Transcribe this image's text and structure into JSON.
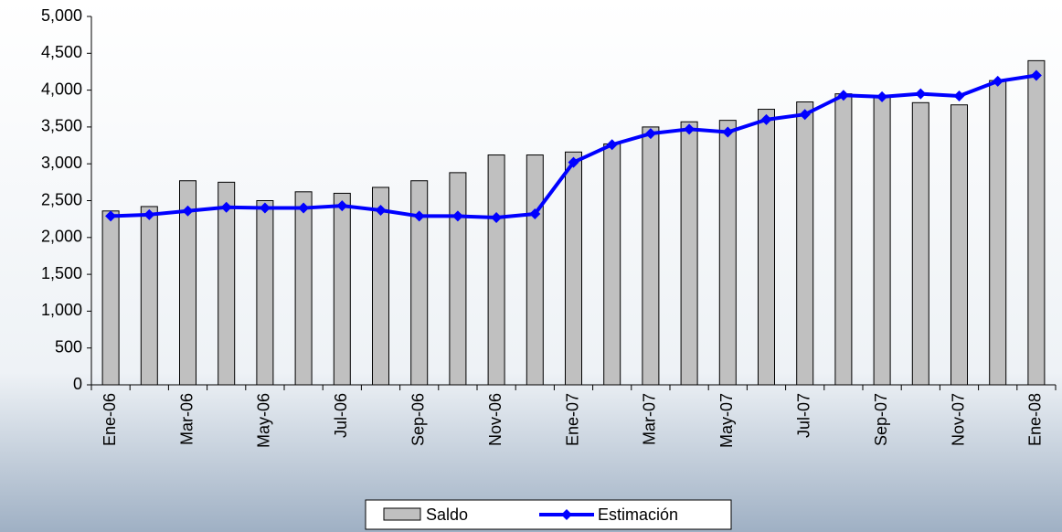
{
  "chart_data": {
    "type": "bar-line",
    "categories": [
      "Ene-06",
      null,
      "Mar-06",
      null,
      "May-06",
      null,
      "Jul-06",
      null,
      "Sep-06",
      null,
      "Nov-06",
      null,
      "Ene-07",
      null,
      "Mar-07",
      null,
      "May-07",
      null,
      "Jul-07",
      null,
      "Sep-07",
      null,
      "Nov-07",
      null,
      "Ene-08"
    ],
    "series": [
      {
        "name": "Saldo",
        "type": "bar",
        "color": "#c0c0c0",
        "values": [
          2360,
          2420,
          2770,
          2750,
          2500,
          2620,
          2600,
          2680,
          2770,
          2880,
          3120,
          3120,
          3160,
          3270,
          3500,
          3570,
          3590,
          3740,
          3840,
          3950,
          3910,
          3830,
          3800,
          4130,
          4400
        ]
      },
      {
        "name": "Estimación",
        "type": "line",
        "color": "#0000ff",
        "values": [
          2290,
          2310,
          2360,
          2410,
          2400,
          2400,
          2430,
          2370,
          2290,
          2290,
          2270,
          2320,
          3020,
          3260,
          3410,
          3470,
          3430,
          3600,
          3670,
          3930,
          3910,
          3950,
          3920,
          4120,
          4200
        ]
      }
    ],
    "ylim": [
      0,
      5000
    ],
    "yticks": [
      0,
      500,
      {
        "value": 1000,
        "label": "1,000"
      },
      {
        "value": 1500,
        "label": "1,500"
      },
      {
        "value": 2000,
        "label": "2,000"
      },
      {
        "value": 2500,
        "label": "2,500"
      },
      {
        "value": 3000,
        "label": "3,000"
      },
      {
        "value": 3500,
        "label": "3,500"
      },
      {
        "value": 4000,
        "label": "4,000"
      },
      {
        "value": 4500,
        "label": "4,500"
      },
      {
        "value": 5000,
        "label": "5,000"
      }
    ],
    "legend": "bottom"
  }
}
